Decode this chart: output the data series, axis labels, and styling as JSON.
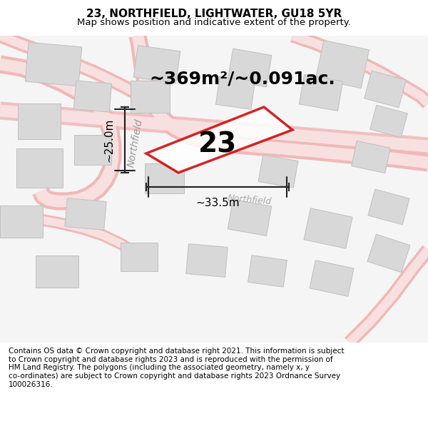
{
  "title_line1": "23, NORTHFIELD, LIGHTWATER, GU18 5YR",
  "title_line2": "Map shows position and indicative extent of the property.",
  "area_text": "~369m²/~0.091ac.",
  "dim_width": "~33.5m",
  "dim_height": "~25.0m",
  "property_number": "23",
  "copyright_text": "Contains OS data © Crown copyright and database right 2021. This information is subject\nto Crown copyright and database rights 2023 and is reproduced with the permission of\nHM Land Registry. The polygons (including the associated geometry, namely x, y\nco-ordinates) are subject to Crown copyright and database rights 2023 Ordnance Survey\n100026316.",
  "bg_color": "#f8f8f8",
  "map_bg": "#f0f0f0",
  "road_color": "#f5c0c0",
  "building_color": "#e0e0e0",
  "property_color": "#cc0000",
  "dim_color": "#222222",
  "title_fontsize": 11,
  "subtitle_fontsize": 9.5,
  "area_fontsize": 18,
  "label_fontsize": 13,
  "copyright_fontsize": 7.5
}
